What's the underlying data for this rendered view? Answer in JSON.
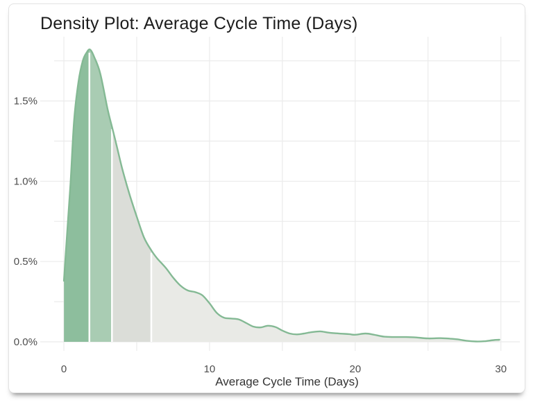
{
  "window": {
    "background": "#ffffff"
  },
  "card": {
    "title": "Density Plot: Average Cycle Time (Days)",
    "background": "#ffffff",
    "border_color": "#e2e2e2"
  },
  "chart_data": {
    "type": "area",
    "subtype": "density",
    "title": "Density Plot: Average Cycle Time (Days)",
    "xlabel": "Average Cycle Time (Days)",
    "ylabel": "",
    "xlim": [
      -0.67,
      31.3
    ],
    "ylim": [
      0,
      1.9
    ],
    "grid": true,
    "legend": false,
    "x_ticks": [
      0,
      10,
      20,
      30
    ],
    "x_tick_labels": [
      "0",
      "10",
      "20",
      "30"
    ],
    "x_gridlines": [
      0,
      5,
      10,
      15,
      20,
      25,
      30
    ],
    "y_ticks": [
      0,
      0.5,
      1.0,
      1.5
    ],
    "y_tick_labels": [
      "0.0%",
      "0.5%",
      "1.0%",
      "1.5%"
    ],
    "y_gridlines": [
      0,
      0.25,
      0.5,
      0.75,
      1.0,
      1.25,
      1.5,
      1.75
    ],
    "line_color": "#84b994",
    "grid_color": "#ebebeb",
    "tick_label_color": "#4d4d4d",
    "axis_label_color": "#333333",
    "separator_color": "#ffffff",
    "bands": [
      {
        "from": 0,
        "to": 1.75,
        "color": "#8dbe9d"
      },
      {
        "from": 1.75,
        "to": 3.3,
        "color": "#a9ccb3"
      },
      {
        "from": 3.3,
        "to": 6.0,
        "color": "#dbddd8"
      },
      {
        "from": 6.0,
        "to": 30.5,
        "color": "#e9eae6"
      }
    ],
    "curve": [
      [
        0,
        0.38
      ],
      [
        0.2,
        0.65
      ],
      [
        0.45,
        0.98
      ],
      [
        0.7,
        1.38
      ],
      [
        1.0,
        1.62
      ],
      [
        1.3,
        1.75
      ],
      [
        1.55,
        1.8
      ],
      [
        1.8,
        1.82
      ],
      [
        2.1,
        1.77
      ],
      [
        2.5,
        1.67
      ],
      [
        3.0,
        1.45
      ],
      [
        3.3,
        1.34
      ],
      [
        3.6,
        1.23
      ],
      [
        4.0,
        1.08
      ],
      [
        4.5,
        0.92
      ],
      [
        5.0,
        0.78
      ],
      [
        5.5,
        0.65
      ],
      [
        6.0,
        0.57
      ],
      [
        6.4,
        0.52
      ],
      [
        7.0,
        0.46
      ],
      [
        7.5,
        0.4
      ],
      [
        8.0,
        0.35
      ],
      [
        8.5,
        0.32
      ],
      [
        9.0,
        0.31
      ],
      [
        9.5,
        0.29
      ],
      [
        10.0,
        0.24
      ],
      [
        10.5,
        0.18
      ],
      [
        11.0,
        0.15
      ],
      [
        11.5,
        0.145
      ],
      [
        12.0,
        0.14
      ],
      [
        12.5,
        0.118
      ],
      [
        13.0,
        0.095
      ],
      [
        13.5,
        0.09
      ],
      [
        14.0,
        0.1
      ],
      [
        14.5,
        0.093
      ],
      [
        15.0,
        0.07
      ],
      [
        15.5,
        0.052
      ],
      [
        16.0,
        0.046
      ],
      [
        16.5,
        0.052
      ],
      [
        17.0,
        0.06
      ],
      [
        17.6,
        0.065
      ],
      [
        18.2,
        0.057
      ],
      [
        19.0,
        0.051
      ],
      [
        19.6,
        0.048
      ],
      [
        20.0,
        0.044
      ],
      [
        20.7,
        0.052
      ],
      [
        21.3,
        0.044
      ],
      [
        22.0,
        0.032
      ],
      [
        22.7,
        0.03
      ],
      [
        23.5,
        0.03
      ],
      [
        24.2,
        0.027
      ],
      [
        25.0,
        0.021
      ],
      [
        25.8,
        0.023
      ],
      [
        26.5,
        0.02
      ],
      [
        27.0,
        0.016
      ],
      [
        27.7,
        0.006
      ],
      [
        28.3,
        0.002
      ],
      [
        28.9,
        0.004
      ],
      [
        29.5,
        0.011
      ],
      [
        29.9,
        0.013
      ]
    ]
  }
}
